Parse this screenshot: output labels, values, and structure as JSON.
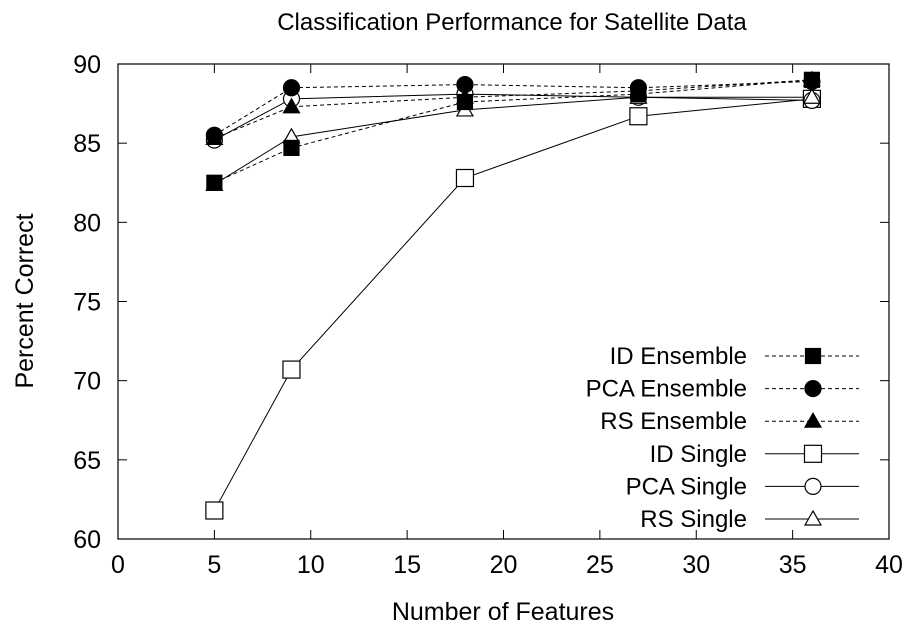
{
  "chart_data": {
    "type": "line",
    "title": "Classification Performance for Satellite Data",
    "xlabel": "Number of Features",
    "ylabel": "Percent Correct",
    "xlim": [
      0,
      40
    ],
    "ylim": [
      60,
      90
    ],
    "xticks": [
      "0",
      "5",
      "10",
      "15",
      "20",
      "25",
      "30",
      "35",
      "40"
    ],
    "yticks": [
      "60",
      "65",
      "70",
      "75",
      "80",
      "85",
      "90"
    ],
    "grid": false,
    "legend_position": "bottom-right",
    "x": [
      5,
      9,
      18,
      27,
      36
    ],
    "series": [
      {
        "name": "ID Ensemble",
        "marker": "filled-square",
        "line": "dashed",
        "values": [
          82.5,
          84.7,
          87.6,
          88.1,
          89.0
        ]
      },
      {
        "name": "PCA Ensemble",
        "marker": "filled-circle",
        "line": "dashed",
        "values": [
          85.5,
          88.5,
          88.7,
          88.5,
          88.9
        ]
      },
      {
        "name": "RS Ensemble",
        "marker": "filled-triangle",
        "line": "dashed",
        "values": [
          85.3,
          87.3,
          87.9,
          88.3,
          89.0
        ]
      },
      {
        "name": "ID Single",
        "marker": "open-square",
        "line": "solid",
        "values": [
          61.8,
          70.7,
          82.8,
          86.7,
          87.8
        ]
      },
      {
        "name": "PCA Single",
        "marker": "open-circle",
        "line": "solid",
        "values": [
          85.2,
          87.8,
          88.1,
          87.9,
          87.7
        ]
      },
      {
        "name": "RS Single",
        "marker": "open-triangle",
        "line": "solid",
        "values": [
          82.4,
          85.4,
          87.1,
          87.9,
          87.9
        ]
      }
    ]
  }
}
